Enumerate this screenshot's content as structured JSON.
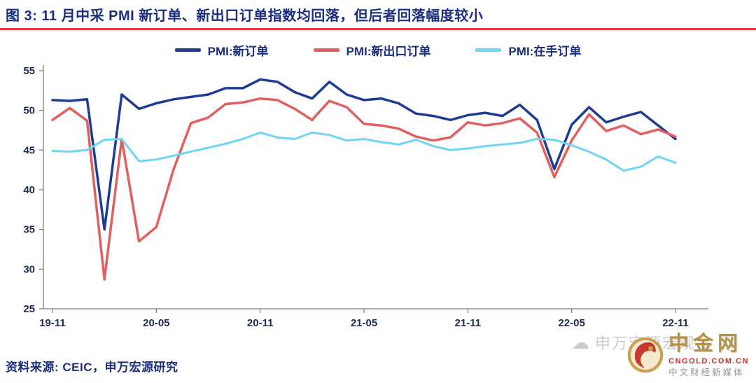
{
  "title": "图 3: 11 月中采 PMI 新订单、新出口订单指数均回落，但后者回落幅度较小",
  "source_note": "资料来源: CEIC，申万宏源研究",
  "watermark": {
    "gray_text": "申万宏源宏观",
    "brand_name": "中金网",
    "brand_domain": "CNGOLD.COM.CN",
    "brand_tagline": "中文财经新媒体"
  },
  "colors": {
    "title_navy": "#1b2f7e",
    "divider_red": "#e8353b",
    "axis_gray": "#7f7f7f",
    "brand_gold": "#b6914a",
    "brand_red": "#cc2b2b"
  },
  "chart_data": {
    "type": "line",
    "title": "11 月中采 PMI 新订单、新出口订单指数均回落，但后者回落幅度较小",
    "xlabel": "",
    "ylabel": "",
    "ylim": [
      25,
      55
    ],
    "y_ticks": [
      55,
      50,
      45,
      40,
      35,
      30,
      25
    ],
    "x_tick_indices": [
      0,
      6,
      12,
      18,
      24,
      30,
      36
    ],
    "grid": false,
    "legend_position": "top",
    "axis_color": "#7f7f7f",
    "categories": [
      "19-11",
      "19-12",
      "20-01",
      "20-02",
      "20-03",
      "20-04",
      "20-05",
      "20-06",
      "20-07",
      "20-08",
      "20-09",
      "20-10",
      "20-11",
      "20-12",
      "21-01",
      "21-02",
      "21-03",
      "21-04",
      "21-05",
      "21-06",
      "21-07",
      "21-08",
      "21-09",
      "21-10",
      "21-11",
      "21-12",
      "22-01",
      "22-02",
      "22-03",
      "22-04",
      "22-05",
      "22-06",
      "22-07",
      "22-08",
      "22-09",
      "22-10",
      "22-11"
    ],
    "series": [
      {
        "name": "PMI:新订单",
        "color": "#1d3c94",
        "width": 3.5,
        "values": [
          51.3,
          51.2,
          51.4,
          35.0,
          52.0,
          50.2,
          50.9,
          51.4,
          51.7,
          52.0,
          52.8,
          52.8,
          53.9,
          53.6,
          52.3,
          51.5,
          53.6,
          52.0,
          51.3,
          51.5,
          50.9,
          49.6,
          49.3,
          48.8,
          49.4,
          49.7,
          49.3,
          50.7,
          48.8,
          42.6,
          48.2,
          50.4,
          48.5,
          49.2,
          49.8,
          48.1,
          46.4
        ]
      },
      {
        "name": "PMI:新出口订单",
        "color": "#e0605e",
        "width": 3.5,
        "values": [
          48.8,
          50.3,
          48.7,
          28.7,
          46.4,
          33.5,
          35.3,
          42.6,
          48.4,
          49.1,
          50.8,
          51.0,
          51.5,
          51.3,
          50.2,
          48.8,
          51.2,
          50.4,
          48.3,
          48.1,
          47.7,
          46.7,
          46.2,
          46.6,
          48.5,
          48.1,
          48.4,
          49.0,
          47.2,
          41.6,
          46.2,
          49.5,
          47.4,
          48.1,
          47.0,
          47.6,
          46.7
        ]
      },
      {
        "name": "PMI:在手订单",
        "color": "#70d5f3",
        "width": 3,
        "values": [
          44.9,
          44.8,
          45.0,
          46.3,
          46.4,
          43.6,
          43.8,
          44.3,
          44.8,
          45.3,
          45.8,
          46.4,
          47.2,
          46.6,
          46.4,
          47.2,
          46.9,
          46.2,
          46.4,
          46.0,
          45.7,
          46.3,
          45.5,
          45.0,
          45.2,
          45.5,
          45.7,
          45.9,
          46.4,
          46.3,
          45.6,
          44.8,
          43.8,
          42.4,
          42.9,
          44.2,
          43.4
        ]
      }
    ]
  }
}
